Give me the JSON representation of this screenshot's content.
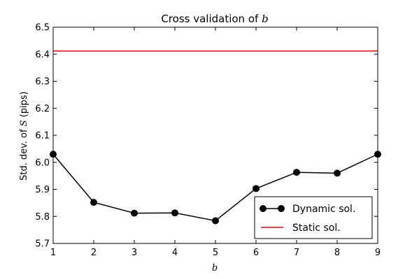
{
  "chart_data": {
    "type": "line",
    "title": "Cross validation of b",
    "title_prefix": "Cross validation of ",
    "title_var": "b",
    "xlabel": "b",
    "ylabel_prefix": "Std. dev. of ",
    "ylabel_var": "S",
    "ylabel_suffix": " (pips)",
    "xlim": [
      1,
      9
    ],
    "ylim": [
      5.7,
      6.5
    ],
    "x_ticks": [
      1,
      2,
      3,
      4,
      5,
      6,
      7,
      8,
      9
    ],
    "y_ticks": [
      "5.7",
      "5.8",
      "5.9",
      "6.0",
      "6.1",
      "6.2",
      "6.3",
      "6.4",
      "6.5"
    ],
    "grid": false,
    "legend_position": "lower-right",
    "series": [
      {
        "name": "Dynamic sol.",
        "color": "#000000",
        "marker": "circle",
        "x": [
          1,
          2,
          3,
          4,
          5,
          6,
          7,
          8,
          9
        ],
        "y": [
          6.03,
          5.852,
          5.812,
          5.813,
          5.784,
          5.903,
          5.963,
          5.96,
          6.03
        ]
      },
      {
        "name": "Static sol.",
        "color": "#ff0000",
        "marker": "none",
        "x": [
          1,
          9
        ],
        "y": [
          6.412,
          6.412
        ]
      }
    ]
  }
}
